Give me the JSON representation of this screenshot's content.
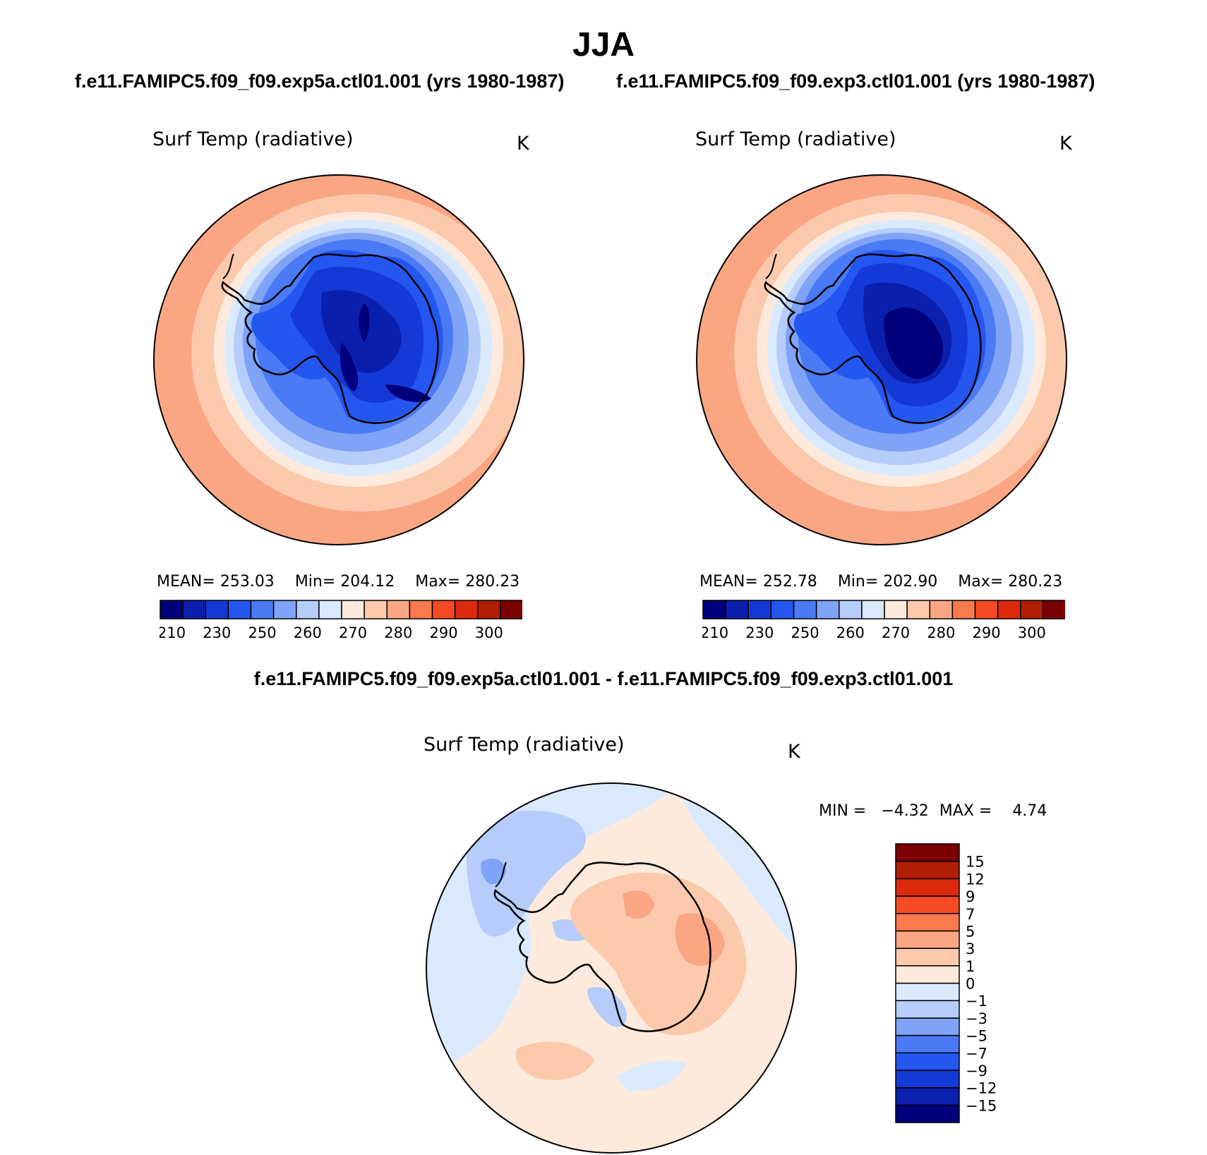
{
  "title": "JJA",
  "cases": {
    "a": "f.e11.FAMIPC5.f09_f09.exp5a.ctl01.001 (yrs 1980-1987)",
    "b": "f.e11.FAMIPC5.f09_f09.exp3.ctl01.001 (yrs 1980-1987)"
  },
  "diff_title": "f.e11.FAMIPC5.f09_f09.exp5a.ctl01.001 - f.e11.FAMIPC5.f09_f09.exp3.ctl01.001",
  "panels": [
    {
      "variable": "Surf Temp (radiative)",
      "units": "K",
      "mean_label": "MEAN=",
      "mean": "253.03",
      "min_label": "Min=",
      "min": "204.12",
      "max_label": "Max=",
      "max": "280.23"
    },
    {
      "variable": "Surf Temp (radiative)",
      "units": "K",
      "mean_label": "MEAN=",
      "mean": "252.78",
      "min_label": "Min=",
      "min": "202.90",
      "max_label": "Max=",
      "max": "280.23"
    }
  ],
  "diff_panel": {
    "variable": "Surf Temp (radiative)",
    "units": "K",
    "min_label": "MIN =",
    "min": "−4.32",
    "max_label": "MAX =",
    "max": "4.74"
  },
  "colorbar": {
    "colors": [
      "#00007d",
      "#0a1fae",
      "#1539d4",
      "#2457f0",
      "#4a7af5",
      "#7fa3f7",
      "#b6cdfb",
      "#daeafc",
      "#feeadc",
      "#fcc9ad",
      "#fba683",
      "#fb7a4d",
      "#f74b24",
      "#dd2a0c",
      "#b11e05",
      "#7d0000"
    ],
    "tick_labels": [
      "210",
      "230",
      "250",
      "260",
      "270",
      "280",
      "290",
      "300"
    ]
  },
  "diff_colorbar": {
    "colors": [
      "#00007d",
      "#0a1fae",
      "#1539d4",
      "#2457f0",
      "#4a7af5",
      "#7fa3f7",
      "#b6cdfb",
      "#daeafc",
      "#feeadc",
      "#fcc9ad",
      "#fba683",
      "#fb7a4d",
      "#f74b24",
      "#dd2a0c",
      "#b11e05",
      "#7d0000"
    ],
    "tick_labels": [
      "−15",
      "−12",
      "−9",
      "−7",
      "−5",
      "−3",
      "−1",
      "0",
      "1",
      "3",
      "5",
      "7",
      "9",
      "12",
      "15"
    ]
  }
}
